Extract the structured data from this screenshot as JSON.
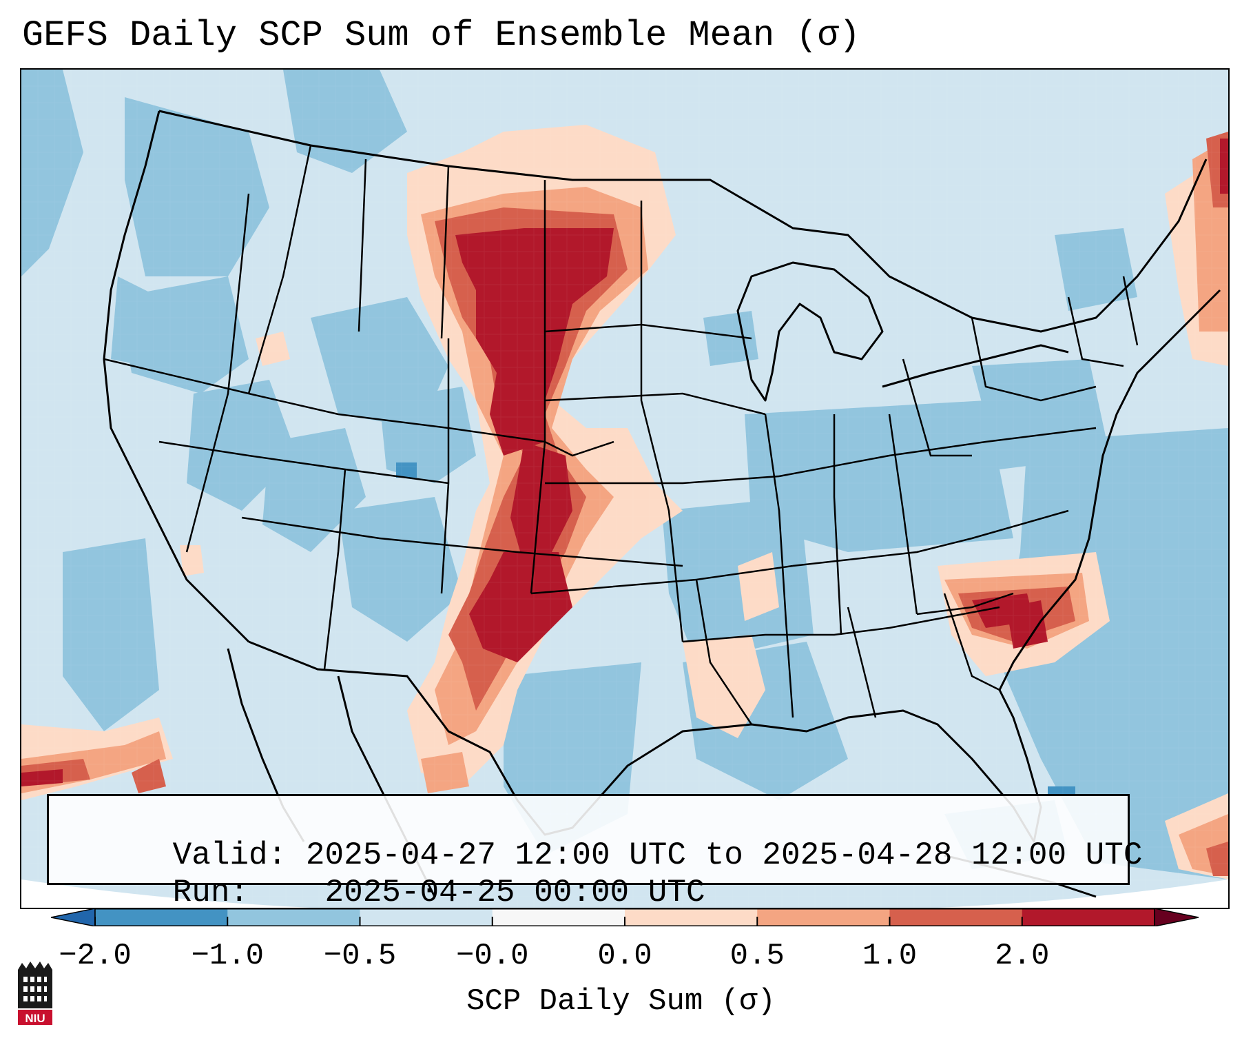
{
  "title": "GEFS Daily SCP Sum of Ensemble Mean (σ)",
  "info_box": {
    "valid_label": "Valid:",
    "valid_value": "2025-04-27 12:00 UTC to 2025-04-28 12:00 UTC",
    "run_label": "Run:",
    "run_value": "2025-04-25 00:00 UTC"
  },
  "colorbar": {
    "title": "SCP Daily Sum (σ)",
    "tick_labels": [
      "−2.0",
      "−1.0",
      "−0.5",
      "−0.0",
      "0.0",
      "0.5",
      "1.0",
      "2.0"
    ],
    "bin_colors": [
      "#4393c3",
      "#92c5de",
      "#d1e5f0",
      "#f7f7f7",
      "#fddbc7",
      "#f4a582",
      "#d6604d",
      "#b2182b"
    ],
    "under_color": "#2166ac",
    "over_color": "#67001f"
  },
  "map": {
    "region": "CONUS",
    "ocean_base_color": "#d1e5f0",
    "highlight_regions": [
      "Montana/Dakotas to Nebraska and Kansas (strong positive)",
      "Oklahoma / West Texas (strong positive)",
      "Georgia / South Carolina (positive)",
      "Maine / Atlantic Canada (positive)",
      "Louisiana Gulf coast (weak positive)"
    ]
  },
  "logo": {
    "text": "NIU",
    "color": "#c8102e"
  }
}
